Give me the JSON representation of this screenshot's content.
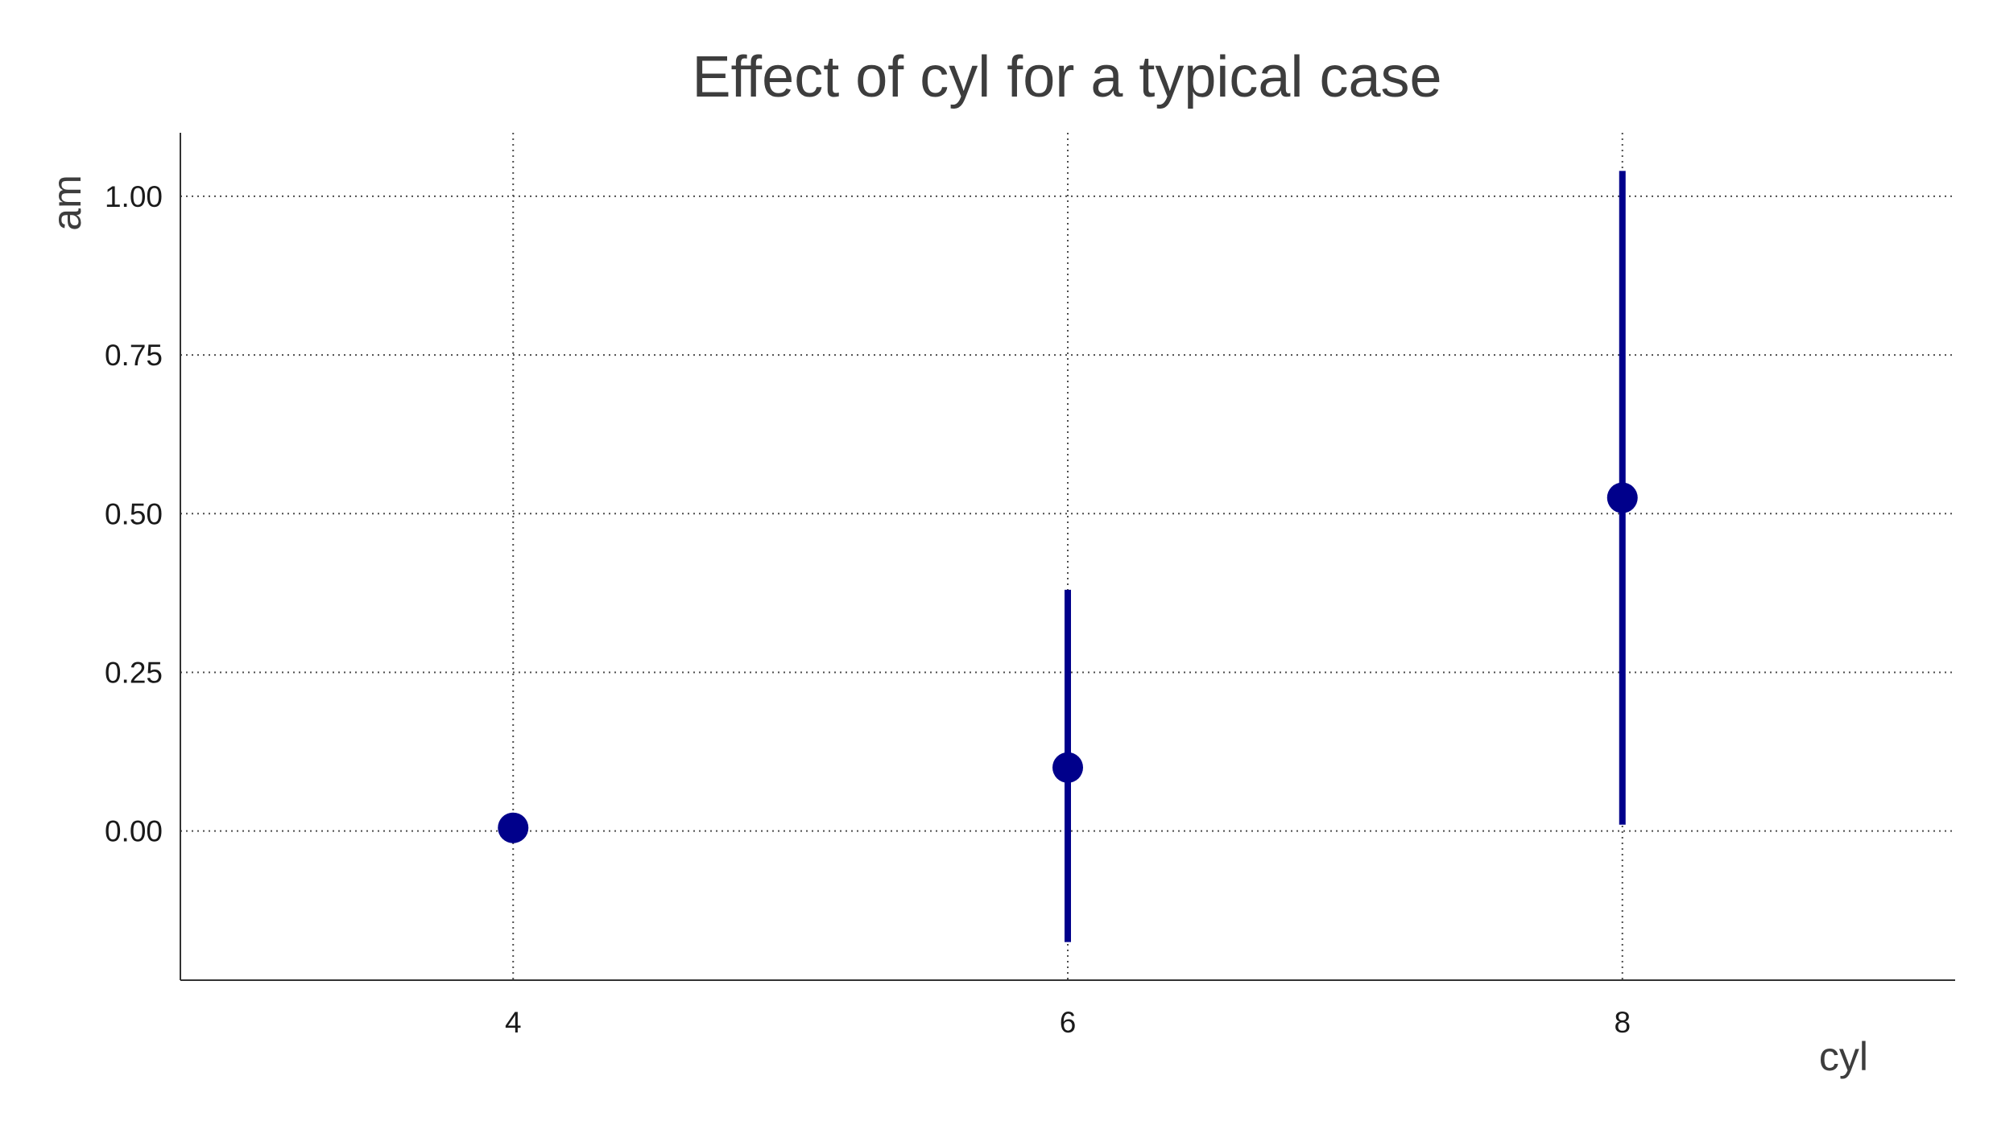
{
  "chart_data": {
    "type": "scatter",
    "title": "Effect of cyl for a typical case",
    "xlabel": "cyl",
    "ylabel": "am",
    "x": [
      4,
      6,
      8
    ],
    "x_tick_labels": [
      "4",
      "6",
      "8"
    ],
    "y_ticks": [
      0.0,
      0.25,
      0.5,
      0.75,
      1.0
    ],
    "y_tick_labels": [
      "0.00",
      "0.25",
      "0.50",
      "0.75",
      "1.00"
    ],
    "xlim": [
      2.8,
      9.2
    ],
    "ylim": [
      -0.235,
      1.1
    ],
    "grid": true,
    "legend": "none",
    "colors": {
      "point": "#00008B",
      "errorbar": "#00008B"
    },
    "series": [
      {
        "points": [
          {
            "x": 4,
            "y": 0.005,
            "lower": 0.0,
            "upper": 0.02
          },
          {
            "x": 6,
            "y": 0.1,
            "lower": -0.175,
            "upper": 0.38
          },
          {
            "x": 8,
            "y": 0.525,
            "lower": 0.01,
            "upper": 1.04
          }
        ]
      }
    ]
  }
}
